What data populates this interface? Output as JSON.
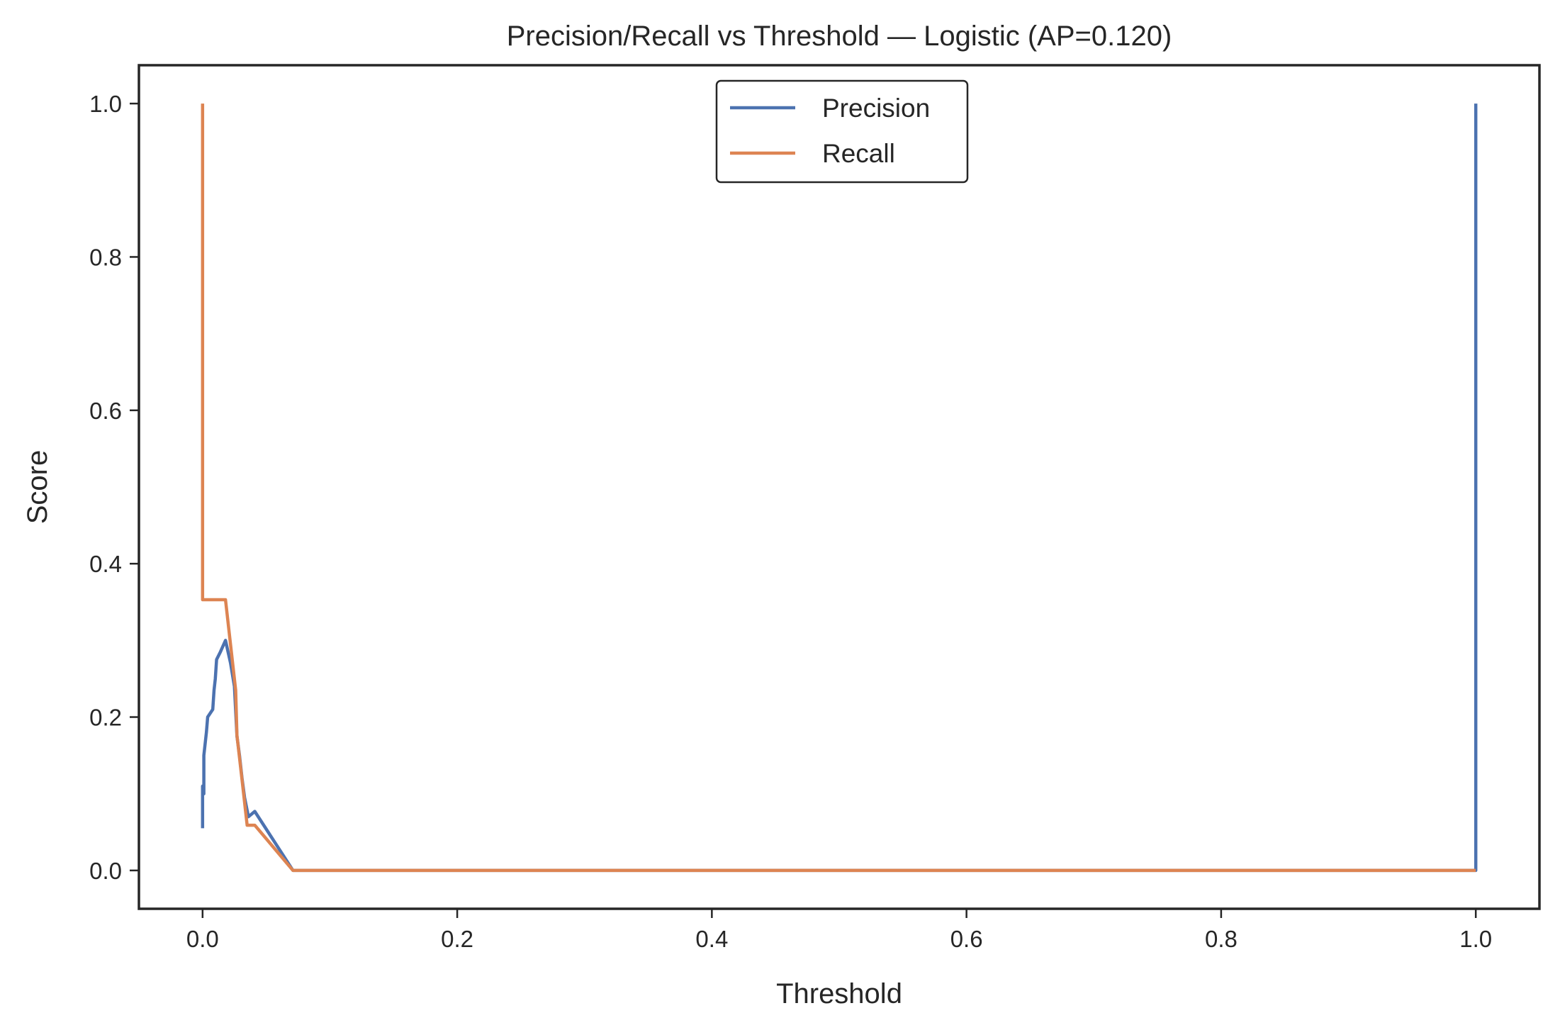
{
  "chart_data": {
    "type": "line",
    "title": "Precision/Recall vs Threshold — Logistic (AP=0.120)",
    "xlabel": "Threshold",
    "ylabel": "Score",
    "xlim": [
      -0.05,
      1.05
    ],
    "ylim": [
      -0.05,
      1.05
    ],
    "xticks": [
      0.0,
      0.2,
      0.4,
      0.6,
      0.8,
      1.0
    ],
    "xtick_labels": [
      "0.0",
      "0.2",
      "0.4",
      "0.6",
      "0.8",
      "1.0"
    ],
    "yticks": [
      0.0,
      0.2,
      0.4,
      0.6,
      0.8,
      1.0
    ],
    "ytick_labels": [
      "0.0",
      "0.2",
      "0.4",
      "0.6",
      "0.8",
      "1.0"
    ],
    "grid": false,
    "legend_position": "upper-center",
    "series": [
      {
        "name": "Precision",
        "color": "#4c72b0",
        "points": [
          [
            0.0,
            0.055
          ],
          [
            0.0,
            0.11
          ],
          [
            0.001,
            0.1
          ],
          [
            0.001,
            0.15
          ],
          [
            0.002,
            0.165
          ],
          [
            0.003,
            0.18
          ],
          [
            0.004,
            0.2
          ],
          [
            0.006,
            0.205
          ],
          [
            0.008,
            0.21
          ],
          [
            0.009,
            0.235
          ],
          [
            0.01,
            0.25
          ],
          [
            0.011,
            0.275
          ],
          [
            0.014,
            0.285
          ],
          [
            0.018,
            0.3
          ],
          [
            0.022,
            0.27
          ],
          [
            0.025,
            0.24
          ],
          [
            0.027,
            0.175
          ],
          [
            0.029,
            0.15
          ],
          [
            0.031,
            0.12
          ],
          [
            0.033,
            0.095
          ],
          [
            0.036,
            0.07
          ],
          [
            0.041,
            0.077
          ],
          [
            0.071,
            0.0
          ],
          [
            1.0,
            0.0
          ],
          [
            1.0,
            1.0
          ]
        ]
      },
      {
        "name": "Recall",
        "color": "#dd8452",
        "points": [
          [
            0.0,
            1.0
          ],
          [
            0.0,
            0.353
          ],
          [
            0.018,
            0.353
          ],
          [
            0.026,
            0.235
          ],
          [
            0.027,
            0.176
          ],
          [
            0.031,
            0.118
          ],
          [
            0.035,
            0.059
          ],
          [
            0.041,
            0.059
          ],
          [
            0.071,
            0.0
          ],
          [
            1.0,
            0.0
          ]
        ]
      }
    ]
  }
}
